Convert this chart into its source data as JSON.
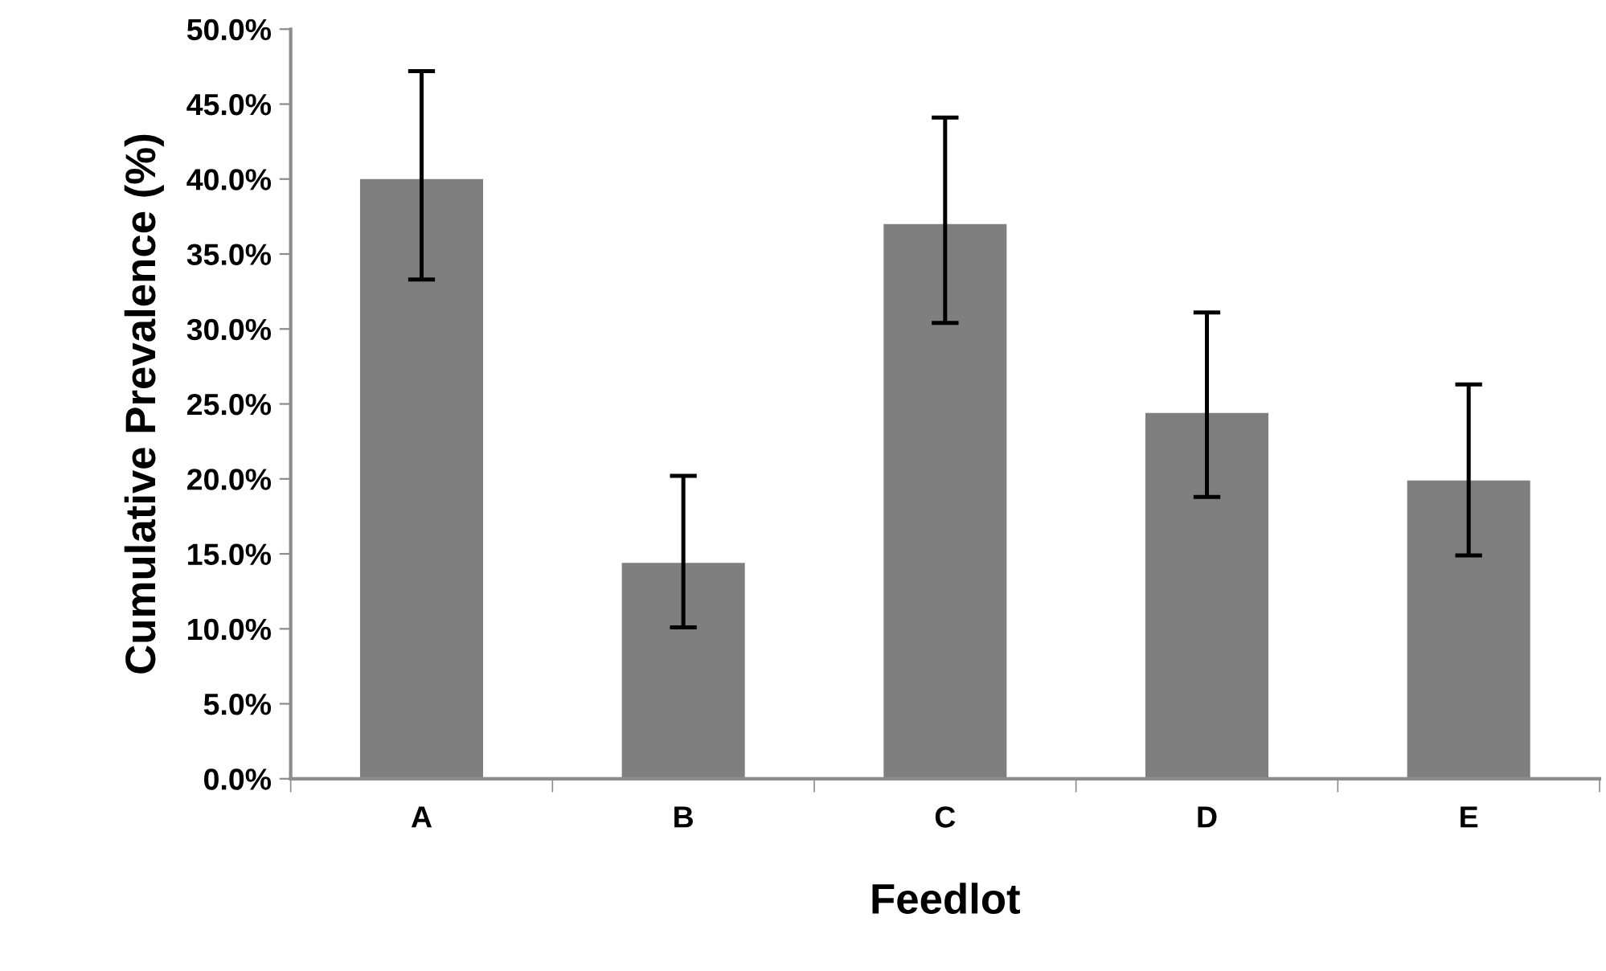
{
  "chart_data": {
    "type": "bar",
    "xlabel": "Feedlot",
    "ylabel": "Cumulative Prevalence (%)",
    "categories": [
      "A",
      "B",
      "C",
      "D",
      "E"
    ],
    "values": [
      40.0,
      14.4,
      37.0,
      24.4,
      19.9
    ],
    "errors": [
      [
        33.3,
        47.2
      ],
      [
        10.1,
        20.2
      ],
      [
        30.4,
        44.1
      ],
      [
        18.8,
        31.1
      ],
      [
        14.9,
        26.3
      ]
    ],
    "color": "#7f7f7f",
    "ylim": [
      0,
      50
    ],
    "yticks": [
      {
        "value": 0,
        "label": "0.0%"
      },
      {
        "value": 5,
        "label": "5.0%"
      },
      {
        "value": 10,
        "label": "10.0%"
      },
      {
        "value": 15,
        "label": "15.0%"
      },
      {
        "value": 20,
        "label": "20.0%"
      },
      {
        "value": 25,
        "label": "25.0%"
      },
      {
        "value": 30,
        "label": "30.0%"
      },
      {
        "value": 35,
        "label": "35.0%"
      },
      {
        "value": 40,
        "label": "40.0%"
      },
      {
        "value": 45,
        "label": "45.0%"
      },
      {
        "value": 50,
        "label": "50.0%"
      }
    ],
    "grid": false
  }
}
